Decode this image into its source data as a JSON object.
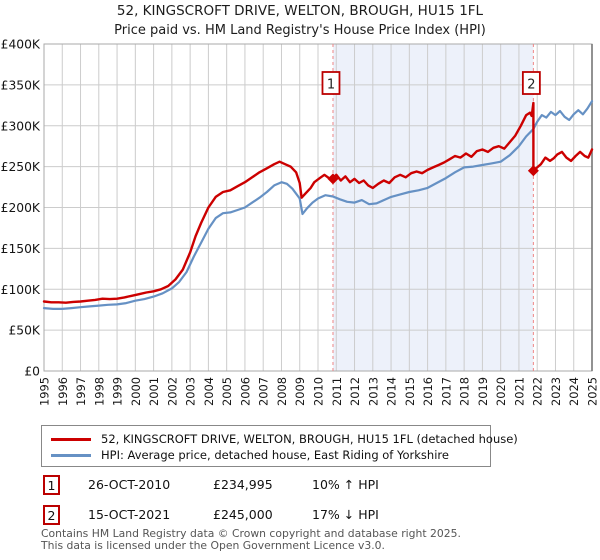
{
  "title": "52, KINGSCROFT DRIVE, WELTON, BROUGH, HU15 1FL",
  "subtitle": "Price paid vs. HM Land Registry's House Price Index (HPI)",
  "legend": {
    "items": [
      {
        "label": "52, KINGSCROFT DRIVE, WELTON, BROUGH, HU15 1FL (detached house)",
        "color": "#cc0000"
      },
      {
        "label": "HPI: Average price, detached house, East Riding of Yorkshire",
        "color": "#6691c4"
      }
    ]
  },
  "footer": {
    "line1": "Contains HM Land Registry data © Crown copyright and database right 2025.",
    "line2": "This data is licensed under the Open Government Licence v3.0."
  },
  "chart_data": {
    "type": "line",
    "title": "Price paid vs. HM Land Registry's House Price Index (HPI)",
    "x_min": 1995,
    "x_max": 2025,
    "y_max_k": 400,
    "unit": "GBP thousands",
    "grid": true,
    "x_ticks": [
      "1995",
      "1996",
      "1997",
      "1998",
      "1999",
      "2000",
      "2001",
      "2002",
      "2003",
      "2004",
      "2005",
      "2006",
      "2007",
      "2008",
      "2009",
      "2010",
      "2011",
      "2012",
      "2013",
      "2014",
      "2015",
      "2016",
      "2017",
      "2018",
      "2019",
      "2020",
      "2021",
      "2022",
      "2023",
      "2024",
      "2025"
    ],
    "y_ticks": [
      {
        "v": 0,
        "label": "£0"
      },
      {
        "v": 50,
        "label": "£50K"
      },
      {
        "v": 100,
        "label": "£100K"
      },
      {
        "v": 150,
        "label": "£150K"
      },
      {
        "v": 200,
        "label": "£200K"
      },
      {
        "v": 250,
        "label": "£250K"
      },
      {
        "v": 300,
        "label": "£300K"
      },
      {
        "v": 350,
        "label": "£350K"
      },
      {
        "v": 400,
        "label": "£400K"
      }
    ],
    "shaded_region": {
      "from_year": 2010.82,
      "to_year": 2021.79,
      "color": "#edf1fa"
    },
    "colors": {
      "grid": "#cccccc",
      "border": "#aaaaaa",
      "border_right": "#777777",
      "dashed": "#ee8585",
      "marker": "#cc0000",
      "tick_text": "#151515",
      "sale_box_border": "#bb0000",
      "sale_box_text": "#222222",
      "sale_box_fill": "#ffffff"
    },
    "sales": [
      {
        "label": "1",
        "date": "26-OCT-2010",
        "price": "£234,995",
        "hpi_delta": "10% ↑ HPI",
        "year": 2010.82,
        "value_k": 234.995
      },
      {
        "label": "2",
        "date": "15-OCT-2021",
        "price": "£245,000",
        "hpi_delta": "17% ↓ HPI",
        "year": 2021.79,
        "value_k": 245
      }
    ],
    "series": [
      {
        "name": "52, KINGSCROFT DRIVE, WELTON, BROUGH, HU15 1FL (detached house)",
        "color": "#cc0000",
        "width": 2.4,
        "points": [
          [
            1995.0,
            85
          ],
          [
            1995.4,
            84
          ],
          [
            1995.8,
            84
          ],
          [
            1996.2,
            83.5
          ],
          [
            1996.6,
            84.5
          ],
          [
            1997.0,
            85
          ],
          [
            1997.4,
            86
          ],
          [
            1997.8,
            87
          ],
          [
            1998.2,
            88.5
          ],
          [
            1998.6,
            88
          ],
          [
            1999.0,
            88.5
          ],
          [
            1999.4,
            90
          ],
          [
            1999.8,
            92
          ],
          [
            2000.2,
            94
          ],
          [
            2000.6,
            96
          ],
          [
            2001.0,
            97.5
          ],
          [
            2001.4,
            100
          ],
          [
            2001.8,
            104
          ],
          [
            2002.2,
            112
          ],
          [
            2002.6,
            124
          ],
          [
            2003.0,
            145
          ],
          [
            2003.3,
            165
          ],
          [
            2003.6,
            181
          ],
          [
            2004.0,
            200
          ],
          [
            2004.4,
            213
          ],
          [
            2004.8,
            219
          ],
          [
            2005.2,
            221
          ],
          [
            2005.6,
            226
          ],
          [
            2006.0,
            231
          ],
          [
            2006.4,
            237
          ],
          [
            2006.8,
            243
          ],
          [
            2007.2,
            248
          ],
          [
            2007.6,
            253
          ],
          [
            2007.9,
            256
          ],
          [
            2008.2,
            253
          ],
          [
            2008.5,
            250
          ],
          [
            2008.8,
            243
          ],
          [
            2009.0,
            230
          ],
          [
            2009.1,
            212
          ],
          [
            2009.35,
            218
          ],
          [
            2009.6,
            224
          ],
          [
            2009.8,
            231
          ],
          [
            2010.1,
            236
          ],
          [
            2010.35,
            240
          ],
          [
            2010.6,
            236
          ],
          [
            2010.82,
            235
          ],
          [
            2011.0,
            240
          ],
          [
            2011.25,
            233
          ],
          [
            2011.5,
            238
          ],
          [
            2011.75,
            231
          ],
          [
            2012.0,
            235
          ],
          [
            2012.25,
            230
          ],
          [
            2012.5,
            233
          ],
          [
            2012.75,
            227
          ],
          [
            2013.0,
            224
          ],
          [
            2013.3,
            229
          ],
          [
            2013.6,
            233
          ],
          [
            2013.9,
            230
          ],
          [
            2014.2,
            237
          ],
          [
            2014.5,
            240
          ],
          [
            2014.8,
            237
          ],
          [
            2015.1,
            242
          ],
          [
            2015.4,
            244
          ],
          [
            2015.7,
            242
          ],
          [
            2016.0,
            246
          ],
          [
            2016.3,
            249
          ],
          [
            2016.6,
            252
          ],
          [
            2016.9,
            255
          ],
          [
            2017.2,
            259
          ],
          [
            2017.5,
            263
          ],
          [
            2017.8,
            261
          ],
          [
            2018.1,
            266
          ],
          [
            2018.4,
            262
          ],
          [
            2018.7,
            269
          ],
          [
            2019.0,
            271
          ],
          [
            2019.3,
            268
          ],
          [
            2019.6,
            273
          ],
          [
            2019.9,
            275
          ],
          [
            2020.2,
            272
          ],
          [
            2020.5,
            280
          ],
          [
            2020.8,
            288
          ],
          [
            2021.1,
            300
          ],
          [
            2021.4,
            313
          ],
          [
            2021.6,
            316
          ],
          [
            2021.7,
            312
          ],
          [
            2021.79,
            328
          ],
          [
            2021.79,
            245
          ],
          [
            2022.0,
            249
          ],
          [
            2022.2,
            253
          ],
          [
            2022.45,
            261
          ],
          [
            2022.7,
            257
          ],
          [
            2022.9,
            260
          ],
          [
            2023.1,
            265
          ],
          [
            2023.35,
            268
          ],
          [
            2023.6,
            261
          ],
          [
            2023.85,
            257
          ],
          [
            2024.1,
            263
          ],
          [
            2024.35,
            268
          ],
          [
            2024.6,
            263
          ],
          [
            2024.8,
            261
          ],
          [
            2025.0,
            271
          ]
        ]
      },
      {
        "name": "HPI: Average price, detached house, East Riding of Yorkshire",
        "color": "#6691c4",
        "width": 2.2,
        "points": [
          [
            1995.0,
            77
          ],
          [
            1995.5,
            76
          ],
          [
            1996.0,
            76
          ],
          [
            1996.5,
            77
          ],
          [
            1997.0,
            78
          ],
          [
            1997.5,
            79
          ],
          [
            1998.0,
            80
          ],
          [
            1998.5,
            81
          ],
          [
            1999.0,
            81.5
          ],
          [
            1999.5,
            83
          ],
          [
            2000.0,
            86
          ],
          [
            2000.5,
            88
          ],
          [
            2001.0,
            91
          ],
          [
            2001.5,
            95
          ],
          [
            2002.0,
            101
          ],
          [
            2002.4,
            109
          ],
          [
            2002.8,
            121
          ],
          [
            2003.2,
            140
          ],
          [
            2003.6,
            157
          ],
          [
            2004.0,
            174
          ],
          [
            2004.4,
            187
          ],
          [
            2004.8,
            193
          ],
          [
            2005.2,
            194
          ],
          [
            2005.6,
            197
          ],
          [
            2006.0,
            200
          ],
          [
            2006.4,
            206
          ],
          [
            2006.8,
            212
          ],
          [
            2007.2,
            219
          ],
          [
            2007.6,
            227
          ],
          [
            2008.0,
            231
          ],
          [
            2008.3,
            229
          ],
          [
            2008.6,
            223
          ],
          [
            2009.0,
            211
          ],
          [
            2009.15,
            192
          ],
          [
            2009.4,
            199
          ],
          [
            2009.7,
            206
          ],
          [
            2010.0,
            211
          ],
          [
            2010.4,
            215
          ],
          [
            2010.82,
            213.5
          ],
          [
            2011.2,
            210
          ],
          [
            2011.6,
            207
          ],
          [
            2012.0,
            206
          ],
          [
            2012.4,
            209
          ],
          [
            2012.8,
            204
          ],
          [
            2013.2,
            205
          ],
          [
            2013.6,
            209
          ],
          [
            2014.0,
            213
          ],
          [
            2014.5,
            216
          ],
          [
            2015.0,
            219
          ],
          [
            2015.5,
            221
          ],
          [
            2016.0,
            224
          ],
          [
            2016.5,
            230
          ],
          [
            2017.0,
            236
          ],
          [
            2017.5,
            243
          ],
          [
            2018.0,
            249
          ],
          [
            2018.5,
            250
          ],
          [
            2019.0,
            252
          ],
          [
            2019.5,
            254
          ],
          [
            2020.0,
            256
          ],
          [
            2020.5,
            264
          ],
          [
            2021.0,
            275
          ],
          [
            2021.4,
            287
          ],
          [
            2021.79,
            296
          ],
          [
            2022.0,
            305
          ],
          [
            2022.25,
            313
          ],
          [
            2022.5,
            310
          ],
          [
            2022.75,
            317
          ],
          [
            2023.0,
            313
          ],
          [
            2023.25,
            318
          ],
          [
            2023.5,
            311
          ],
          [
            2023.75,
            307
          ],
          [
            2024.0,
            314
          ],
          [
            2024.25,
            319
          ],
          [
            2024.5,
            314
          ],
          [
            2024.75,
            321
          ],
          [
            2025.0,
            330
          ]
        ]
      }
    ]
  }
}
